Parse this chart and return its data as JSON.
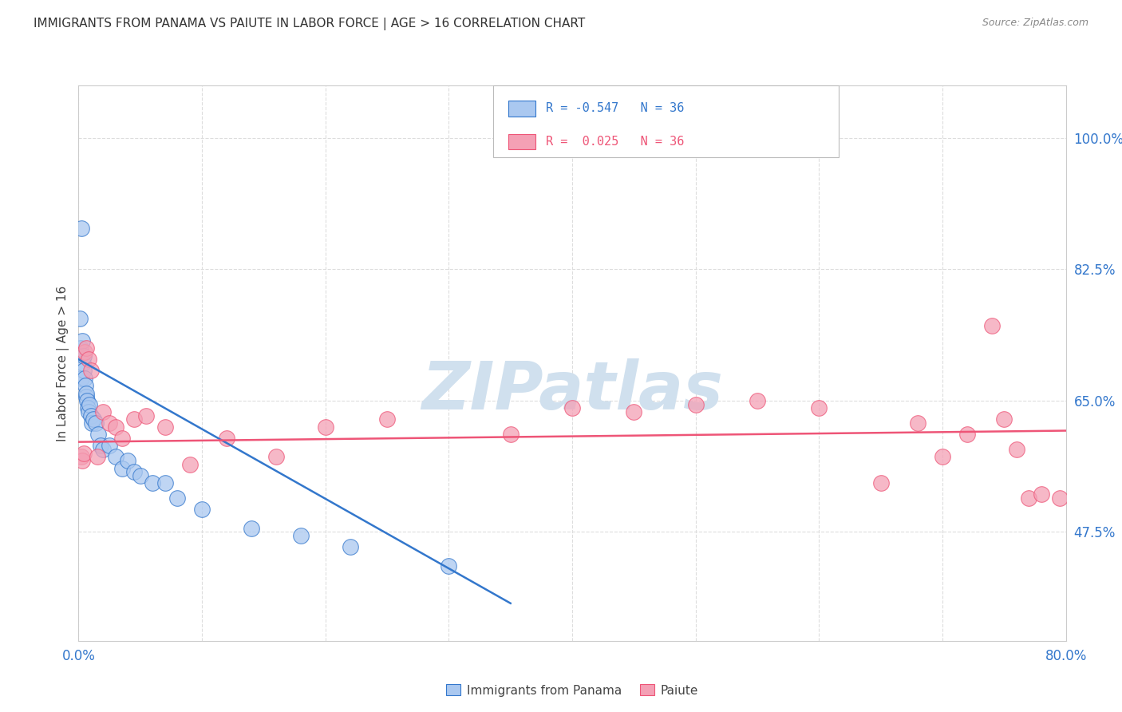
{
  "title": "IMMIGRANTS FROM PANAMA VS PAIUTE IN LABOR FORCE | AGE > 16 CORRELATION CHART",
  "source": "Source: ZipAtlas.com",
  "ylabel": "In Labor Force | Age > 16",
  "right_yticks": [
    47.5,
    65.0,
    82.5,
    100.0
  ],
  "right_ytick_labels": [
    "47.5%",
    "65.0%",
    "82.5%",
    "100.0%"
  ],
  "legend_label1": "Immigrants from Panama",
  "legend_label2": "Paiute",
  "r1": -0.547,
  "n1": 36,
  "r2": 0.025,
  "n2": 36,
  "color_blue": "#aac8f0",
  "color_pink": "#f4a0b5",
  "line_color_blue": "#3377cc",
  "line_color_pink": "#ee5577",
  "blue_scatter_x": [
    0.1,
    0.15,
    0.2,
    0.3,
    0.35,
    0.4,
    0.45,
    0.5,
    0.55,
    0.6,
    0.65,
    0.7,
    0.75,
    0.8,
    0.9,
    1.0,
    1.1,
    1.2,
    1.4,
    1.6,
    1.8,
    2.0,
    2.5,
    3.0,
    3.5,
    4.0,
    4.5,
    5.0,
    6.0,
    7.0,
    8.0,
    10.0,
    14.0,
    18.0,
    22.0,
    30.0
  ],
  "blue_scatter_y": [
    76.0,
    72.0,
    68.0,
    73.0,
    70.0,
    71.0,
    69.0,
    68.0,
    67.0,
    65.5,
    66.0,
    65.0,
    64.0,
    63.5,
    64.5,
    63.0,
    62.0,
    62.5,
    62.0,
    60.5,
    59.0,
    58.5,
    59.0,
    57.5,
    56.0,
    57.0,
    55.5,
    55.0,
    54.0,
    54.0,
    52.0,
    50.5,
    48.0,
    47.0,
    45.5,
    43.0
  ],
  "blue_outlier_x": 0.25,
  "blue_outlier_y": 88.0,
  "pink_scatter_x": [
    0.2,
    0.3,
    0.4,
    0.5,
    0.6,
    0.8,
    1.0,
    1.5,
    2.0,
    2.5,
    3.0,
    3.5,
    4.5,
    5.5,
    7.0,
    9.0,
    12.0,
    16.0,
    20.0,
    25.0,
    35.0,
    40.0,
    45.0,
    50.0,
    55.0,
    60.0,
    65.0,
    68.0,
    70.0,
    72.0,
    74.0,
    75.0,
    76.0,
    77.0,
    78.0,
    79.5
  ],
  "pink_scatter_y": [
    57.5,
    57.0,
    58.0,
    71.5,
    72.0,
    70.5,
    69.0,
    57.5,
    63.5,
    62.0,
    61.5,
    60.0,
    62.5,
    63.0,
    61.5,
    56.5,
    60.0,
    57.5,
    61.5,
    62.5,
    60.5,
    64.0,
    63.5,
    64.5,
    65.0,
    64.0,
    54.0,
    62.0,
    57.5,
    60.5,
    75.0,
    62.5,
    58.5,
    52.0,
    52.5,
    52.0
  ],
  "blue_line_x0": 0.0,
  "blue_line_y0": 70.5,
  "blue_line_x1": 35.0,
  "blue_line_y1": 38.0,
  "pink_line_x0": 0.0,
  "pink_line_y0": 59.5,
  "pink_line_x1": 80.0,
  "pink_line_y1": 61.0,
  "xmin": 0.0,
  "xmax": 80.0,
  "ymin": 33.0,
  "ymax": 107.0,
  "xtick_vals": [
    0,
    10,
    20,
    30,
    40,
    50,
    60,
    70,
    80
  ],
  "watermark": "ZIPatlas",
  "watermark_color": "#d0e0ee",
  "background_color": "#ffffff",
  "grid_color": "#dddddd"
}
